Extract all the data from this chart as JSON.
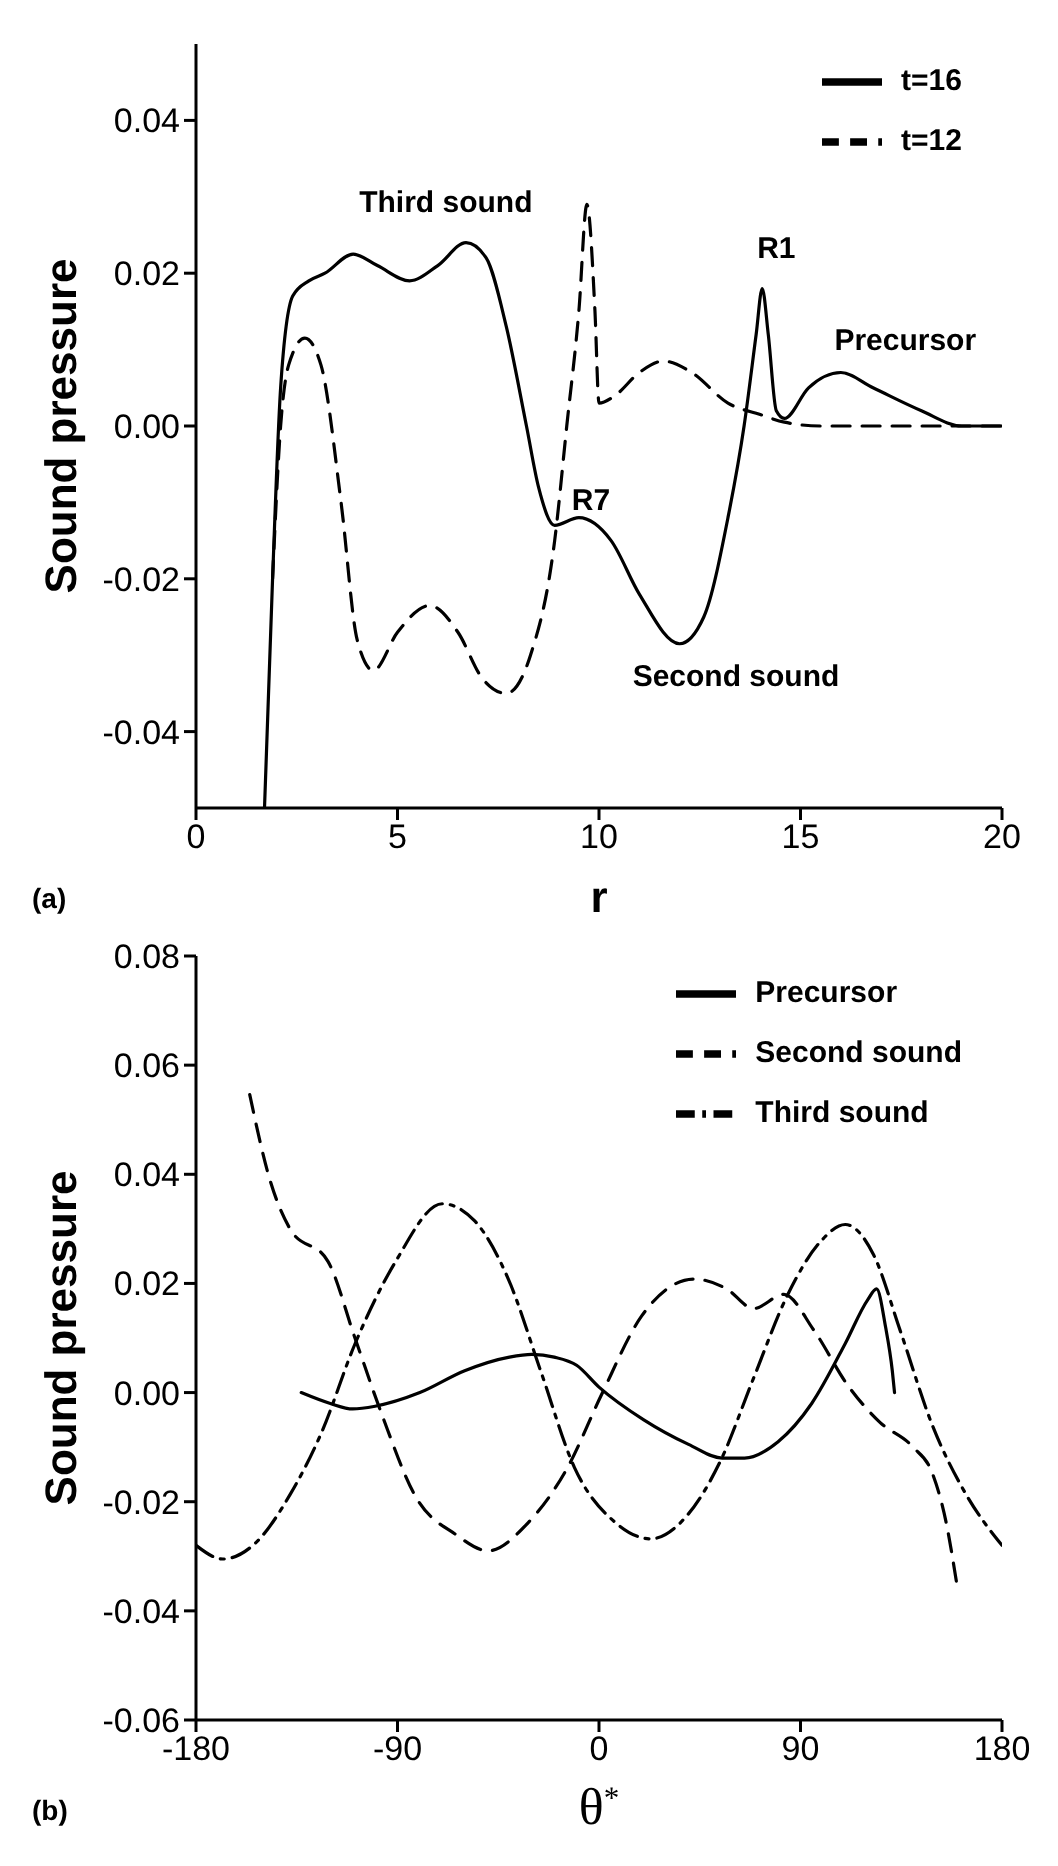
{
  "chart_data": [
    {
      "type": "line",
      "xlabel": "r",
      "ylabel": "Sound pressure",
      "xlim": [
        0,
        20
      ],
      "xticks": [
        0,
        5,
        10,
        15,
        20
      ],
      "ylim": [
        -0.05,
        0.05
      ],
      "yticks": [
        {
          "value": -0.04,
          "label": "-0.04"
        },
        {
          "value": -0.02,
          "label": "-0.02"
        },
        {
          "value": 0,
          "label": "0.00"
        },
        {
          "value": 0.02,
          "label": "0.02"
        },
        {
          "value": 0.04,
          "label": "0.04"
        }
      ],
      "legend": "top right",
      "grid": false,
      "series": [
        {
          "name": "t=16",
          "color": "#000000",
          "line_style": "solid",
          "x": [
            1.7,
            1.9,
            2.1,
            2.4,
            2.8,
            3.2,
            3.9,
            4.5,
            5.3,
            6.0,
            6.7,
            7.2,
            7.7,
            8.2,
            8.5,
            8.9,
            9.5,
            10.3,
            11.0,
            12.0,
            12.6,
            13.2,
            13.6,
            13.9,
            14.05,
            14.2,
            14.4,
            14.6,
            15.2,
            16.0,
            16.8,
            18.0,
            19.0,
            20
          ],
          "values": [
            -0.05,
            -0.02,
            0.005,
            0.017,
            0.019,
            0.02,
            0.0225,
            0.021,
            0.019,
            0.021,
            0.024,
            0.022,
            0.013,
            0.0,
            -0.008,
            -0.013,
            -0.012,
            -0.015,
            -0.022,
            -0.0285,
            -0.025,
            -0.012,
            0.0,
            0.012,
            0.018,
            0.012,
            0.002,
            0.001,
            0.005,
            0.007,
            0.005,
            0.002,
            0.0,
            0.0
          ]
        },
        {
          "name": "t=12",
          "color": "#000000",
          "line_style": "dashed",
          "x": [
            1.9,
            2.1,
            2.3,
            2.7,
            3.1,
            3.6,
            4.0,
            4.4,
            5.0,
            5.8,
            6.5,
            7.1,
            7.7,
            8.3,
            8.9,
            9.2,
            9.5,
            9.7,
            9.9,
            10.0,
            10.4,
            11.0,
            11.6,
            12.3,
            13.2,
            14.0,
            14.6,
            15.5,
            20
          ],
          "values": [
            -0.02,
            0.0,
            0.008,
            0.0115,
            0.008,
            -0.01,
            -0.028,
            -0.032,
            -0.027,
            -0.0235,
            -0.027,
            -0.033,
            -0.035,
            -0.03,
            -0.015,
            0.0,
            0.015,
            0.029,
            0.015,
            0.003,
            0.004,
            0.007,
            0.0085,
            0.007,
            0.003,
            0.0015,
            0.0005,
            0.0,
            0.0
          ]
        }
      ],
      "annotations": [
        "Third sound",
        "R1",
        "Precursor",
        "R7",
        "Second sound",
        "(a)"
      ]
    },
    {
      "type": "line",
      "xlabel": "θ$^{*}$",
      "ylabel": "Sound pressure",
      "xlim": [
        -180,
        180
      ],
      "xticks": [
        -180,
        -90,
        0,
        90,
        180
      ],
      "ylim": [
        -0.06,
        0.08
      ],
      "yticks": [
        {
          "value": -0.06,
          "label": "-0.06"
        },
        {
          "value": -0.04,
          "label": "-0.04"
        },
        {
          "value": -0.02,
          "label": "-0.02"
        },
        {
          "value": 0,
          "label": "0.00"
        },
        {
          "value": 0.02,
          "label": "0.02"
        },
        {
          "value": 0.04,
          "label": "0.04"
        },
        {
          "value": 0.06,
          "label": "0.06"
        },
        {
          "value": 0.08,
          "label": "0.08"
        }
      ],
      "legend": "top right",
      "grid": false,
      "series": [
        {
          "name": "Precursor",
          "color": "#000000",
          "line_style": "solid",
          "x": [
            -133,
            -120,
            -110,
            -100,
            -80,
            -60,
            -40,
            -30,
            -20,
            -10,
            0,
            20,
            40,
            55,
            65,
            80,
            95,
            110,
            120,
            124,
            128,
            131,
            132
          ],
          "values": [
            0.0,
            -0.002,
            -0.003,
            -0.0025,
            0.0,
            0.004,
            0.0065,
            0.007,
            0.0065,
            0.005,
            0.001,
            -0.005,
            -0.0095,
            -0.012,
            -0.012,
            -0.009,
            -0.002,
            0.009,
            0.017,
            0.019,
            0.012,
            0.004,
            0.0
          ]
        },
        {
          "name": "Second sound",
          "color": "#000000",
          "line_style": "dashed",
          "x": [
            -156,
            -147,
            -138,
            -121,
            -109,
            -97,
            -82,
            -64,
            -49.5,
            -32,
            -14,
            1,
            19,
            42.5,
            57,
            69,
            82.6,
            96,
            111,
            125.6,
            140,
            149,
            155,
            160
          ],
          "values": [
            0.0546,
            0.039,
            0.03,
            0.024,
            0.01,
            -0.004,
            -0.019,
            -0.026,
            -0.029,
            -0.024,
            -0.0137,
            -0.0005,
            0.014,
            0.0208,
            0.019,
            0.0154,
            0.018,
            0.0114,
            0.0014,
            -0.0055,
            -0.0099,
            -0.0149,
            -0.0237,
            -0.0356
          ]
        },
        {
          "name": "Third sound",
          "color": "#000000",
          "line_style": "dashdot",
          "x": [
            -180,
            -168,
            -153,
            -138,
            -124,
            -109,
            -91,
            -70,
            -55.4,
            -40.5,
            -26,
            -11,
            7,
            23,
            39.6,
            54.4,
            69,
            84,
            99,
            110,
            122.7,
            134.5,
            149,
            164,
            180
          ],
          "values": [
            -0.028,
            -0.0305,
            -0.0274,
            -0.0187,
            -0.0074,
            0.0089,
            0.0239,
            0.0346,
            0.0314,
            0.0208,
            0.0039,
            -0.0137,
            -0.0237,
            -0.0268,
            -0.0224,
            -0.0124,
            0.0026,
            0.0177,
            0.0277,
            0.0308,
            0.0252,
            0.0114,
            -0.0061,
            -0.0187,
            -0.028
          ]
        }
      ],
      "annotations": [
        "(b)"
      ]
    }
  ]
}
